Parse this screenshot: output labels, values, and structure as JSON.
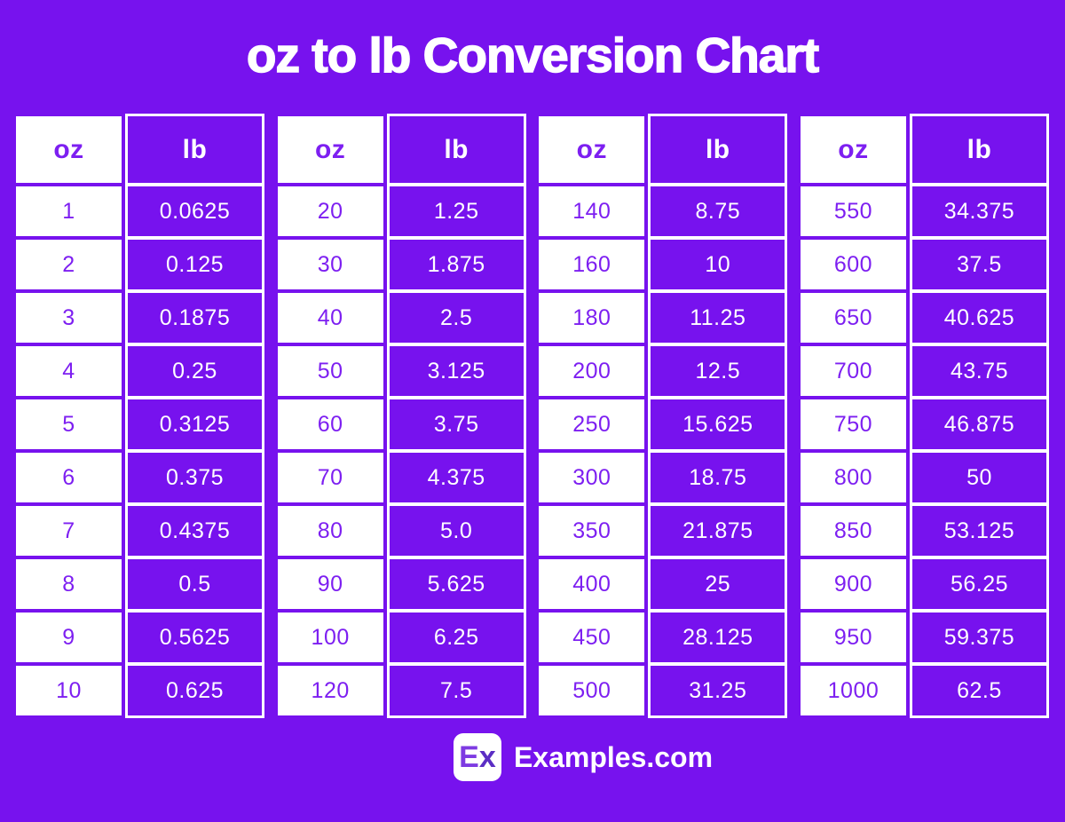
{
  "title": "oz to lb Conversion Chart",
  "chart_data": {
    "type": "table",
    "title": "oz to lb Conversion Chart",
    "columns": [
      "oz",
      "lb"
    ],
    "groups": [
      {
        "headers": {
          "oz": "oz",
          "lb": "lb"
        },
        "rows": [
          [
            "1",
            "0.0625"
          ],
          [
            "2",
            "0.125"
          ],
          [
            "3",
            "0.1875"
          ],
          [
            "4",
            "0.25"
          ],
          [
            "5",
            "0.3125"
          ],
          [
            "6",
            "0.375"
          ],
          [
            "7",
            "0.4375"
          ],
          [
            "8",
            "0.5"
          ],
          [
            "9",
            "0.5625"
          ],
          [
            "10",
            "0.625"
          ]
        ]
      },
      {
        "headers": {
          "oz": "oz",
          "lb": "lb"
        },
        "rows": [
          [
            "20",
            "1.25"
          ],
          [
            "30",
            "1.875"
          ],
          [
            "40",
            "2.5"
          ],
          [
            "50",
            "3.125"
          ],
          [
            "60",
            "3.75"
          ],
          [
            "70",
            "4.375"
          ],
          [
            "80",
            "5.0"
          ],
          [
            "90",
            "5.625"
          ],
          [
            "100",
            "6.25"
          ],
          [
            "120",
            "7.5"
          ]
        ]
      },
      {
        "headers": {
          "oz": "oz",
          "lb": "lb"
        },
        "rows": [
          [
            "140",
            "8.75"
          ],
          [
            "160",
            "10"
          ],
          [
            "180",
            "11.25"
          ],
          [
            "200",
            "12.5"
          ],
          [
            "250",
            "15.625"
          ],
          [
            "300",
            "18.75"
          ],
          [
            "350",
            "21.875"
          ],
          [
            "400",
            "25"
          ],
          [
            "450",
            "28.125"
          ],
          [
            "500",
            "31.25"
          ]
        ]
      },
      {
        "headers": {
          "oz": "oz",
          "lb": "lb"
        },
        "rows": [
          [
            "550",
            "34.375"
          ],
          [
            "600",
            "37.5"
          ],
          [
            "650",
            "40.625"
          ],
          [
            "700",
            "43.75"
          ],
          [
            "750",
            "46.875"
          ],
          [
            "800",
            "50"
          ],
          [
            "850",
            "53.125"
          ],
          [
            "900",
            "56.25"
          ],
          [
            "950",
            "59.375"
          ],
          [
            "1000",
            "62.5"
          ]
        ]
      }
    ]
  },
  "footer": {
    "logo_text_first": "E",
    "logo_text_second": "x",
    "site_name": "Examples.com"
  },
  "colors": {
    "background": "#7712EE",
    "cell_purple": "#7712EE",
    "oz_text_purple": "#7D1FF1",
    "white": "#FFFFFF",
    "logo_e": "#7E3BE2",
    "logo_x": "#5B2EC4"
  }
}
